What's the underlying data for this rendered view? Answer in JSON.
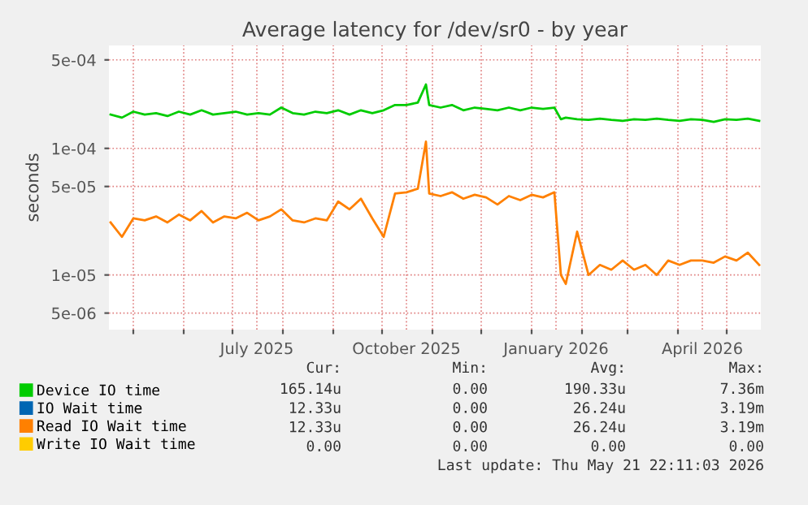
{
  "chart_data": {
    "type": "line",
    "title": "Average latency for /dev/sr0 - by year",
    "ylabel": "seconds",
    "log": "y",
    "grid": true,
    "legend": "bottom left",
    "line_style": "solid",
    "marker": "none",
    "x": [
      "2025-04-17",
      "2025-04-24",
      "2025-05-01",
      "2025-05-08",
      "2025-05-15",
      "2025-05-22",
      "2025-05-29",
      "2025-06-05",
      "2025-06-12",
      "2025-06-19",
      "2025-06-26",
      "2025-07-03",
      "2025-07-10",
      "2025-07-17",
      "2025-07-24",
      "2025-07-31",
      "2025-08-07",
      "2025-08-14",
      "2025-08-21",
      "2025-08-28",
      "2025-09-04",
      "2025-09-11",
      "2025-09-18",
      "2025-09-25",
      "2025-10-02",
      "2025-10-09",
      "2025-10-16",
      "2025-10-23",
      "2025-10-28",
      "2025-10-30",
      "2025-11-06",
      "2025-11-13",
      "2025-11-20",
      "2025-11-27",
      "2025-12-04",
      "2025-12-11",
      "2025-12-18",
      "2025-12-25",
      "2026-01-01",
      "2026-01-08",
      "2026-01-15",
      "2026-01-19",
      "2026-01-22",
      "2026-01-29",
      "2026-02-05",
      "2026-02-12",
      "2026-02-19",
      "2026-02-26",
      "2026-03-05",
      "2026-03-12",
      "2026-03-19",
      "2026-03-26",
      "2026-04-02",
      "2026-04-09",
      "2026-04-16",
      "2026-04-23",
      "2026-04-30",
      "2026-05-07",
      "2026-05-14",
      "2026-05-21"
    ],
    "xlim": [
      "2025-04-16",
      "2026-05-22"
    ],
    "xticks": [
      {
        "value": "2025-05-01",
        "label": null
      },
      {
        "value": "2025-06-01",
        "label": null
      },
      {
        "value": "2025-07-01",
        "label": null
      },
      {
        "value": "2025-07-16",
        "label": "July 2025"
      },
      {
        "value": "2025-08-01",
        "label": null
      },
      {
        "value": "2025-09-01",
        "label": null
      },
      {
        "value": "2025-10-01",
        "label": null
      },
      {
        "value": "2025-10-16",
        "label": "October 2025"
      },
      {
        "value": "2025-11-01",
        "label": null
      },
      {
        "value": "2025-12-01",
        "label": null
      },
      {
        "value": "2026-01-01",
        "label": null
      },
      {
        "value": "2026-01-16",
        "label": "January 2026"
      },
      {
        "value": "2026-02-01",
        "label": null
      },
      {
        "value": "2026-03-01",
        "label": null
      },
      {
        "value": "2026-04-01",
        "label": null
      },
      {
        "value": "2026-04-16",
        "label": "April 2026"
      },
      {
        "value": "2026-05-01",
        "label": null
      }
    ],
    "ylim": [
      3.7e-06,
      0.00065
    ],
    "yticks": [
      {
        "value": 5e-06,
        "label": "5e-06"
      },
      {
        "value": 1e-05,
        "label": "1e-05"
      },
      {
        "value": 5e-05,
        "label": "5e-05"
      },
      {
        "value": 0.0001,
        "label": "1e-04"
      },
      {
        "value": 0.0005,
        "label": "5e-04"
      }
    ],
    "series": [
      {
        "name": "Device IO time",
        "color": "#00cc00",
        "values": [
          0.000185,
          0.000175,
          0.000195,
          0.000185,
          0.00019,
          0.00018,
          0.000195,
          0.000185,
          0.0002,
          0.000185,
          0.00019,
          0.000195,
          0.000185,
          0.00019,
          0.000185,
          0.00021,
          0.00019,
          0.000185,
          0.000195,
          0.00019,
          0.0002,
          0.000185,
          0.0002,
          0.00019,
          0.0002,
          0.00022,
          0.00022,
          0.00023,
          0.00032,
          0.00022,
          0.00021,
          0.00022,
          0.0002,
          0.00021,
          0.000205,
          0.0002,
          0.00021,
          0.0002,
          0.00021,
          0.000205,
          0.00021,
          0.00017,
          0.000175,
          0.00017,
          0.000168,
          0.000172,
          0.000168,
          0.000165,
          0.00017,
          0.000168,
          0.000172,
          0.000168,
          0.000165,
          0.00017,
          0.000168,
          0.000162,
          0.00017,
          0.000168,
          0.000172,
          0.000165
        ]
      },
      {
        "name": "IO Wait time",
        "color": "#0066b3",
        "values": [
          null,
          null,
          null,
          null,
          null,
          null,
          null,
          null,
          null,
          null,
          null,
          null,
          null,
          null,
          null,
          null,
          null,
          null,
          null,
          null,
          null,
          null,
          null,
          null,
          null,
          null,
          null,
          null,
          null,
          null,
          null,
          null,
          null,
          null,
          null,
          null,
          null,
          null,
          null,
          null,
          null,
          null,
          null,
          null,
          null,
          null,
          null,
          null,
          null,
          null,
          null,
          null,
          null,
          null,
          null,
          null,
          null,
          null,
          null,
          null
        ]
      },
      {
        "name": "Read IO Wait time",
        "color": "#ff8000",
        "values": [
          2.6e-05,
          2e-05,
          2.8e-05,
          2.7e-05,
          2.9e-05,
          2.6e-05,
          3e-05,
          2.7e-05,
          3.2e-05,
          2.6e-05,
          2.9e-05,
          2.8e-05,
          3.1e-05,
          2.7e-05,
          2.9e-05,
          3.3e-05,
          2.7e-05,
          2.6e-05,
          2.8e-05,
          2.7e-05,
          3.8e-05,
          3.3e-05,
          4e-05,
          2.8e-05,
          2e-05,
          4.4e-05,
          4.5e-05,
          4.8e-05,
          0.000113,
          4.4e-05,
          4.2e-05,
          4.5e-05,
          4e-05,
          4.3e-05,
          4.1e-05,
          3.6e-05,
          4.2e-05,
          3.9e-05,
          4.3e-05,
          4.1e-05,
          4.5e-05,
          1e-05,
          8.5e-06,
          2.2e-05,
          1e-05,
          1.2e-05,
          1.1e-05,
          1.3e-05,
          1.1e-05,
          1.2e-05,
          1e-05,
          1.3e-05,
          1.2e-05,
          1.3e-05,
          1.3e-05,
          1.25e-05,
          1.4e-05,
          1.3e-05,
          1.5e-05,
          1.2e-05
        ]
      },
      {
        "name": "Write IO Wait time",
        "color": "#ffcc00",
        "values": [
          null,
          null,
          null,
          null,
          null,
          null,
          null,
          null,
          null,
          null,
          null,
          null,
          null,
          null,
          null,
          null,
          null,
          null,
          null,
          null,
          null,
          null,
          null,
          null,
          null,
          null,
          null,
          null,
          null,
          null,
          null,
          null,
          null,
          null,
          null,
          null,
          null,
          null,
          null,
          null,
          null,
          null,
          null,
          null,
          null,
          null,
          null,
          null,
          null,
          null,
          null,
          null,
          null,
          null,
          null,
          null,
          null,
          null,
          null,
          null
        ]
      }
    ],
    "annotations": [
      "Cur:",
      "Min:",
      "Avg:",
      "Max:",
      "165.14u",
      "0.00",
      "190.33u",
      "7.36m",
      "12.33u",
      "0.00",
      "26.24u",
      "3.19m",
      "12.33u",
      "0.00",
      "26.24u",
      "3.19m",
      "0.00",
      "0.00",
      "0.00",
      "0.00",
      "Last update: Thu May 21 22:11:03 2026"
    ]
  }
}
